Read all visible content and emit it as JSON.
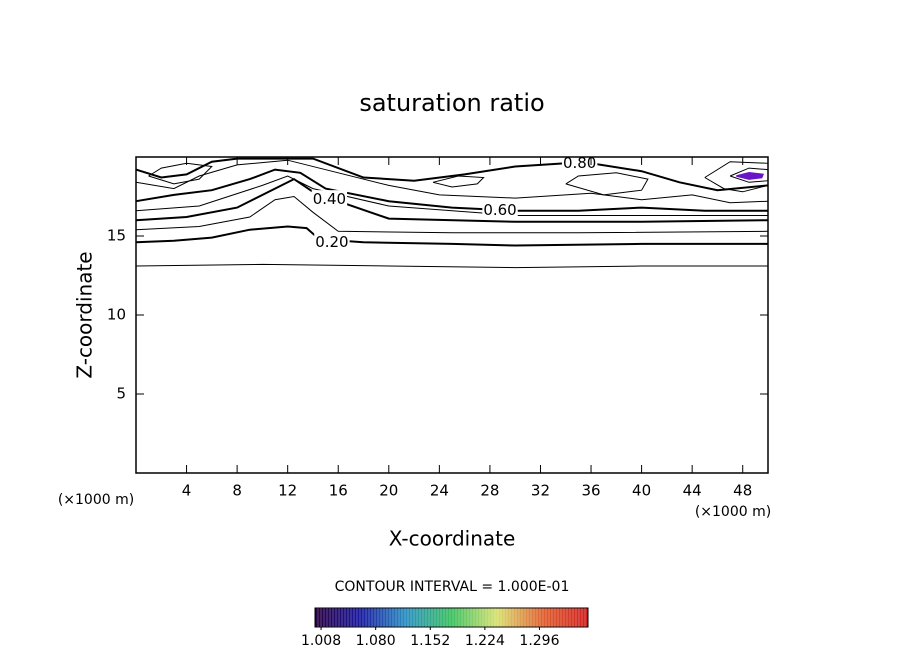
{
  "chart_data": {
    "type": "contour",
    "title": "saturation ratio",
    "x_label": "X-coordinate",
    "y_label": "Z-coordinate",
    "x_unit": "(×1000 m)",
    "y_unit": "(×1000 m)",
    "xlim": [
      0,
      50
    ],
    "ylim": [
      0,
      20
    ],
    "xticks": [
      4,
      8,
      12,
      16,
      20,
      24,
      28,
      32,
      36,
      40,
      44,
      48
    ],
    "yticks": [
      5,
      10,
      15
    ],
    "contours": [
      {
        "level": 0.1,
        "x": [
          0,
          10,
          20,
          30,
          40,
          50
        ],
        "y": [
          13.1,
          13.2,
          13.1,
          13.0,
          13.1,
          13.1
        ]
      },
      {
        "level": 0.2,
        "label": "0.20",
        "label_x": 15.5,
        "label_y": 14.6,
        "x": [
          0,
          3,
          6,
          9,
          12,
          13.5,
          14.5,
          18,
          25,
          30,
          40,
          50
        ],
        "y": [
          14.6,
          14.7,
          14.9,
          15.4,
          15.6,
          15.5,
          14.8,
          14.6,
          14.5,
          14.4,
          14.5,
          14.5
        ]
      },
      {
        "level": 0.3,
        "x": [
          0,
          5,
          9,
          11,
          12.5,
          14,
          16,
          25,
          35,
          50
        ],
        "y": [
          15.4,
          15.6,
          16.2,
          17.3,
          17.5,
          16.5,
          15.3,
          15.2,
          15.2,
          15.3
        ]
      },
      {
        "level": 0.4,
        "label": "0.40",
        "label_x": 15.3,
        "label_y": 17.3,
        "x": [
          0,
          4,
          8,
          11,
          12.5,
          14,
          16,
          20,
          30,
          40,
          50
        ],
        "y": [
          16.0,
          16.2,
          16.8,
          18.0,
          18.6,
          17.8,
          17.2,
          16.1,
          15.9,
          15.9,
          16.0
        ]
      },
      {
        "level": 0.5,
        "x": [
          0,
          5,
          10,
          12,
          14,
          20,
          30,
          40,
          50
        ],
        "y": [
          16.6,
          16.9,
          18.2,
          18.8,
          18.0,
          16.9,
          16.3,
          16.3,
          16.3
        ]
      },
      {
        "level": 0.6,
        "label": "0.60",
        "label_x": 28.8,
        "label_y": 16.6,
        "x": [
          0,
          3,
          6,
          9,
          11,
          13,
          15,
          20,
          25,
          30,
          35,
          40,
          45,
          50
        ],
        "y": [
          17.2,
          17.6,
          17.9,
          18.6,
          19.2,
          19.0,
          18.0,
          17.2,
          16.8,
          16.6,
          16.6,
          16.8,
          16.6,
          16.6
        ]
      },
      {
        "level": 0.7,
        "x": [
          0,
          3,
          5,
          8,
          12,
          16,
          20,
          24,
          30,
          36,
          40,
          44,
          47,
          50
        ],
        "y": [
          18.4,
          18.0,
          18.8,
          19.5,
          19.8,
          19.0,
          18.2,
          17.6,
          17.4,
          17.7,
          17.3,
          17.6,
          17.1,
          17.2
        ]
      },
      {
        "level": 0.8,
        "label": "0.80",
        "label_x": 35.1,
        "label_y": 19.6,
        "x": [
          0,
          2,
          4,
          6,
          8,
          10,
          14,
          18,
          22,
          26,
          30,
          34,
          36,
          40,
          43,
          46,
          50
        ],
        "y": [
          19.2,
          18.7,
          18.9,
          19.7,
          19.9,
          19.9,
          19.9,
          18.7,
          18.5,
          18.9,
          19.4,
          19.6,
          19.6,
          19.1,
          18.4,
          17.9,
          18.2
        ]
      },
      {
        "level": 0.9,
        "x": [
          1,
          3,
          5,
          6,
          4,
          2,
          1
        ],
        "y": [
          18.8,
          18.3,
          18.6,
          19.4,
          19.6,
          19.3,
          18.8
        ]
      },
      {
        "level": 0.9,
        "x": [
          23.5,
          25,
          27,
          27.5,
          25.5,
          23.5
        ],
        "y": [
          18.4,
          18.1,
          18.3,
          18.7,
          18.8,
          18.4
        ]
      },
      {
        "level": 0.7,
        "x": [
          34,
          37,
          40,
          40.5,
          38,
          35,
          34
        ],
        "y": [
          18.3,
          17.6,
          17.9,
          18.6,
          19.0,
          18.8,
          18.3
        ]
      },
      {
        "level": 0.9,
        "x": [
          45,
          46.5,
          48,
          50,
          50,
          47,
          45
        ],
        "y": [
          18.7,
          18.0,
          17.8,
          18.2,
          19.6,
          19.7,
          18.7
        ]
      },
      {
        "level": 0.9,
        "x": [
          47,
          48.5,
          50,
          50,
          48.5,
          47
        ],
        "y": [
          18.8,
          18.4,
          18.5,
          19.2,
          19.3,
          18.8
        ]
      }
    ],
    "fills": [
      {
        "color": "#6a14c8",
        "x": [
          47.5,
          48.5,
          49.5,
          49.6,
          48.5,
          47.5
        ],
        "y": [
          18.8,
          18.6,
          18.7,
          18.9,
          19.0,
          18.8
        ]
      }
    ],
    "colorbar": {
      "title": "CONTOUR INTERVAL = 1.000E-01",
      "lim": [
        1.0,
        1.36
      ],
      "ticks": [
        1.008,
        {
          "value": 1.08,
          "label": "1.080"
        },
        1.152,
        1.224,
        1.296
      ],
      "colors": [
        "#2a0040",
        "#1a1aa0",
        "#2a8fc0",
        "#3cc060",
        "#d8e070",
        "#e06030",
        "#d02020"
      ]
    }
  }
}
